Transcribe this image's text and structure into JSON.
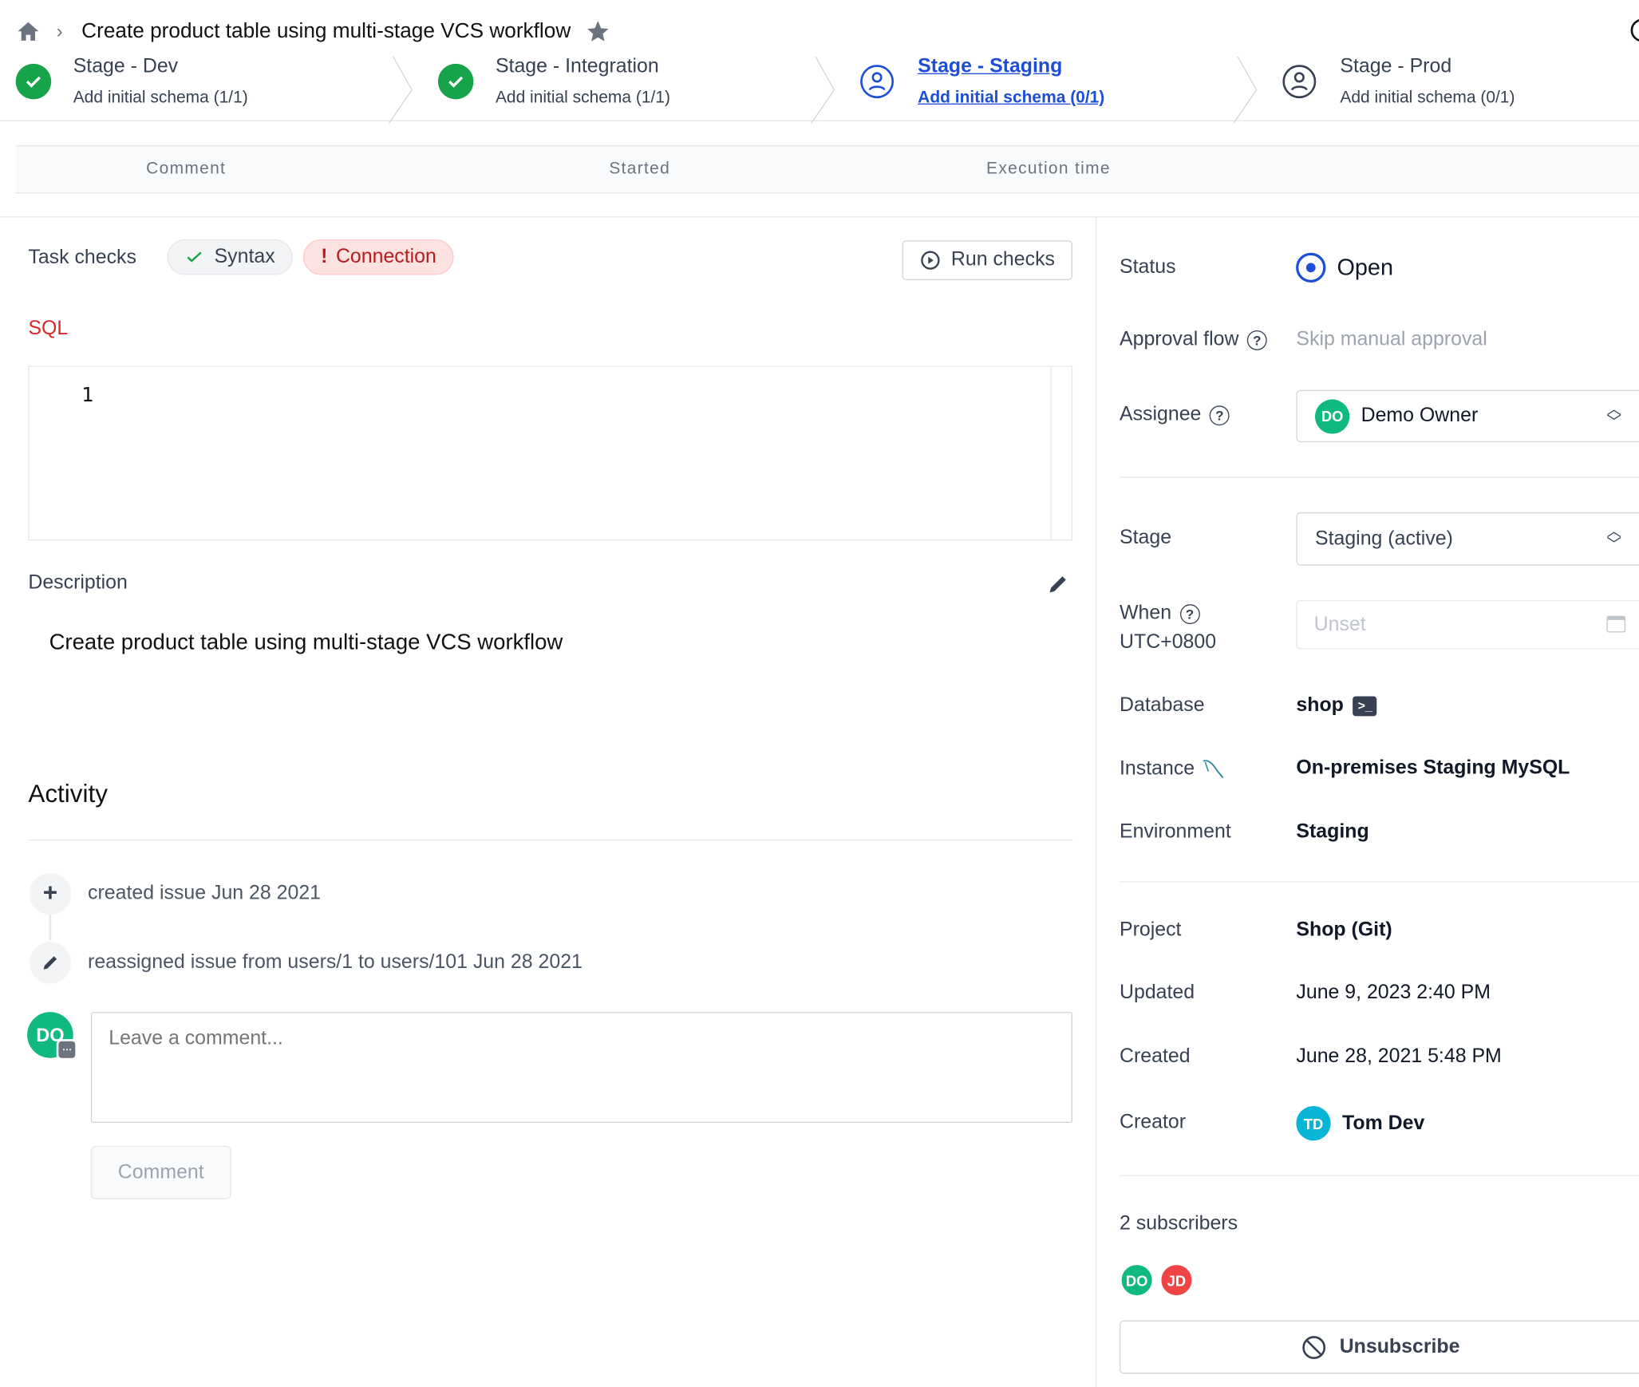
{
  "breadcrumb": {
    "title": "Create product table using multi-stage VCS workflow"
  },
  "stages": [
    {
      "title": "Stage - Dev",
      "subtitle": "Add initial schema (1/1)",
      "state": "done"
    },
    {
      "title": "Stage - Integration",
      "subtitle": "Add initial schema (1/1)",
      "state": "done"
    },
    {
      "title": "Stage - Staging",
      "subtitle": "Add initial schema (0/1)",
      "state": "active"
    },
    {
      "title": "Stage - Prod",
      "subtitle": "Add initial schema (0/1)",
      "state": "pending"
    }
  ],
  "table": {
    "columns": [
      "Comment",
      "Started",
      "Execution time"
    ]
  },
  "checks": {
    "label": "Task checks",
    "syntax": "Syntax",
    "connection": "Connection",
    "run": "Run checks"
  },
  "sql": {
    "label": "SQL",
    "line": "1"
  },
  "description": {
    "label": "Description",
    "text": "Create product table using multi-stage VCS workflow"
  },
  "activity": {
    "title": "Activity",
    "items": [
      "created issue Jun 28 2021",
      "reassigned issue from users/1 to users/101 Jun 28 2021"
    ],
    "comment_avatar": "DO",
    "placeholder": "Leave a comment...",
    "button": "Comment"
  },
  "sidebar": {
    "status_label": "Status",
    "status": "Open",
    "approval_label": "Approval flow",
    "approval": "Skip manual approval",
    "assignee_label": "Assignee",
    "assignee_initials": "DO",
    "assignee": "Demo Owner",
    "stage_label": "Stage",
    "stage": "Staging (active)",
    "when_label": "When",
    "timezone": "UTC+0800",
    "when_placeholder": "Unset",
    "database_label": "Database",
    "database": "shop",
    "instance_label": "Instance",
    "instance": "On-premises Staging MySQL",
    "environment_label": "Environment",
    "environment": "Staging",
    "project_label": "Project",
    "project": "Shop (Git)",
    "updated_label": "Updated",
    "updated": "June 9, 2023 2:40 PM",
    "created_label": "Created",
    "created": "June 28, 2021 5:48 PM",
    "creator_label": "Creator",
    "creator_initials": "TD",
    "creator": "Tom Dev",
    "subscribers": "2 subscribers",
    "subscriber_initials": [
      "DO",
      "JD"
    ],
    "unsubscribe": "Unsubscribe"
  },
  "colors": {
    "accent": "#1d4ed8",
    "success": "#16a34a",
    "danger": "#b91c1c",
    "avatar_do": "#10b981",
    "avatar_jd": "#ef4444",
    "avatar_td": "#06b6d4"
  }
}
